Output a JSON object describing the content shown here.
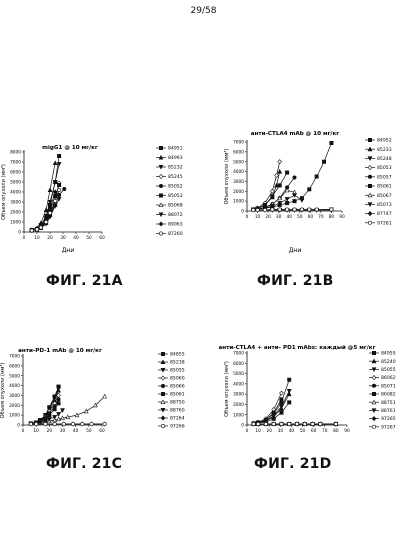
{
  "page_number": "29/58",
  "panels": [
    {
      "id": "A",
      "title": "migG1 @ 10 мг/кг",
      "ylabel": "Объем опухоли (мм³)",
      "xlabel": "Дни",
      "figure_label": "ФИГ. 21A",
      "ylim": [
        0,
        8000
      ],
      "xlim": [
        0,
        60
      ],
      "yticks": [
        "0",
        "1000",
        "2000",
        "3000",
        "4000",
        "5000",
        "6000",
        "7000",
        "8000"
      ],
      "xticks": [
        "0",
        "10",
        "20",
        "30",
        "40",
        "50",
        "60"
      ],
      "legend": [
        "84951",
        "84993",
        "85232",
        "85245",
        "85052",
        "85053",
        "85068",
        "88072",
        "89063",
        "87260"
      ]
    },
    {
      "id": "B",
      "title": "анти-CTLA4 mAb @ 10 мг/кг",
      "ylabel": "Объем опухоли (мм³)",
      "xlabel": "Дни",
      "figure_label": "ФИГ. 21B",
      "ylim": [
        0,
        7000
      ],
      "xlim": [
        0,
        90
      ],
      "yticks": [
        "0",
        "1000",
        "2000",
        "3000",
        "4000",
        "5000",
        "6000",
        "7000"
      ],
      "xticks": [
        "0",
        "10",
        "20",
        "30",
        "40",
        "50",
        "60",
        "70",
        "80",
        "90"
      ],
      "legend": [
        "84952",
        "85233",
        "85248",
        "85053",
        "85057",
        "85061",
        "85067",
        "85073",
        "87747",
        "97261"
      ]
    },
    {
      "id": "C",
      "title": "анти-PD-1 mAb @ 10 мг/кг",
      "ylabel": "Объем опухоли (мм³)",
      "xlabel": "",
      "figure_label": "ФИГ. 21C",
      "ylim": [
        0,
        7000
      ],
      "xlim": [
        0,
        60
      ],
      "yticks": [
        "0",
        "1000",
        "2000",
        "3000",
        "4000",
        "5000",
        "6000",
        "7000"
      ],
      "xticks": [
        "0",
        "10",
        "20",
        "30",
        "40",
        "50",
        "60"
      ],
      "legend": [
        "84855",
        "85238",
        "85055",
        "85060",
        "85066",
        "85061",
        "88750",
        "88760",
        "87264",
        "97266"
      ]
    },
    {
      "id": "D",
      "title": "анти-CTLA4 + анти- PD1 mAbs: каждый @5 мг/кг",
      "ylabel": "Объем опухоли (мм³)",
      "xlabel": "",
      "figure_label": "ФИГ. 21D",
      "ylim": [
        0,
        7000
      ],
      "xlim": [
        0,
        90
      ],
      "yticks": [
        "0",
        "1000",
        "2000",
        "3000",
        "4000",
        "5000",
        "6000",
        "7000"
      ],
      "xticks": [
        "0",
        "10",
        "20",
        "30",
        "40",
        "50",
        "60",
        "70",
        "80",
        "90"
      ],
      "legend": [
        "84955",
        "85240",
        "85055",
        "86062",
        "85071",
        "86082",
        "88751",
        "88761",
        "97265",
        "97267"
      ]
    }
  ],
  "chart_data": [
    {
      "type": "line",
      "title": "migG1 @ 10 мг/кг",
      "xlabel": "Дни",
      "ylabel": "Объем опухоли (мм³)",
      "xlim": [
        0,
        60
      ],
      "ylim": [
        0,
        8000
      ],
      "grid": false,
      "legend_position": "right",
      "series": [
        {
          "name": "84951",
          "x": [
            6,
            10,
            13,
            17,
            20,
            24,
            27
          ],
          "y": [
            200,
            300,
            600,
            1400,
            2700,
            5000,
            7600
          ]
        },
        {
          "name": "84993",
          "x": [
            6,
            10,
            13,
            17,
            20,
            24
          ],
          "y": [
            200,
            400,
            900,
            2200,
            4200,
            6900
          ]
        },
        {
          "name": "85232",
          "x": [
            6,
            10,
            13,
            17,
            20,
            24,
            27
          ],
          "y": [
            150,
            300,
            700,
            1600,
            3000,
            5000,
            6800
          ]
        },
        {
          "name": "85245",
          "x": [
            6,
            10,
            13,
            17,
            20,
            24,
            27
          ],
          "y": [
            150,
            250,
            500,
            1000,
            1800,
            3100,
            4900
          ]
        },
        {
          "name": "85052",
          "x": [
            6,
            10,
            13,
            17,
            20,
            24,
            27,
            31
          ],
          "y": [
            150,
            250,
            450,
            900,
            1700,
            2800,
            3700,
            4300
          ]
        },
        {
          "name": "85053",
          "x": [
            6,
            10,
            13,
            17,
            20,
            24,
            27
          ],
          "y": [
            150,
            250,
            500,
            1100,
            2100,
            3600,
            4700
          ]
        },
        {
          "name": "85068",
          "x": [
            6,
            10,
            13,
            17,
            20,
            24
          ],
          "y": [
            150,
            250,
            400,
            900,
            1700,
            2700
          ]
        },
        {
          "name": "88072",
          "x": [
            6,
            10,
            13,
            17,
            20,
            24,
            27
          ],
          "y": [
            150,
            200,
            400,
            800,
            1500,
            2600,
            3300
          ]
        },
        {
          "name": "89063",
          "x": [
            6,
            10,
            13,
            17,
            20,
            24
          ],
          "y": [
            150,
            250,
            550,
            1200,
            2400,
            4000
          ]
        },
        {
          "name": "87260",
          "x": [
            6,
            10,
            13,
            17,
            20,
            24,
            27
          ],
          "y": [
            150,
            250,
            450,
            1000,
            1900,
            3100,
            4200
          ]
        }
      ]
    },
    {
      "type": "line",
      "title": "анти-CTLA4 mAb @ 10 мг/кг",
      "xlabel": "Дни",
      "ylabel": "Объем опухоли (мм³)",
      "xlim": [
        0,
        90
      ],
      "ylim": [
        0,
        7000
      ],
      "grid": false,
      "legend_position": "right",
      "series": [
        {
          "name": "84952",
          "x": [
            6,
            10,
            17,
            24,
            31,
            38,
            45,
            52,
            59,
            66,
            73,
            80
          ],
          "y": [
            150,
            200,
            300,
            400,
            600,
            800,
            1000,
            1300,
            2200,
            3500,
            5000,
            6900
          ]
        },
        {
          "name": "85233",
          "x": [
            6,
            10,
            17,
            24,
            28,
            31
          ],
          "y": [
            150,
            250,
            600,
            1400,
            2600,
            4000
          ]
        },
        {
          "name": "85248",
          "x": [
            6,
            10,
            17,
            24,
            31,
            38,
            45,
            52,
            59,
            66,
            80
          ],
          "y": [
            100,
            100,
            100,
            100,
            100,
            100,
            100,
            100,
            100,
            100,
            150
          ]
        },
        {
          "name": "85053",
          "x": [
            6,
            10,
            17,
            24,
            28,
            31
          ],
          "y": [
            150,
            300,
            800,
            2000,
            3600,
            5000
          ]
        },
        {
          "name": "85057",
          "x": [
            6,
            10,
            17,
            24,
            31,
            38,
            45
          ],
          "y": [
            150,
            200,
            350,
            700,
            1300,
            2400,
            3400
          ]
        },
        {
          "name": "85061",
          "x": [
            6,
            10,
            17,
            24,
            31,
            38
          ],
          "y": [
            150,
            250,
            600,
            1500,
            2600,
            3900
          ]
        },
        {
          "name": "85067",
          "x": [
            6,
            10,
            17,
            24,
            31,
            38,
            45
          ],
          "y": [
            150,
            200,
            350,
            700,
            1300,
            2100,
            1900
          ]
        },
        {
          "name": "85073",
          "x": [
            6,
            10,
            17,
            24,
            31,
            38,
            45,
            52
          ],
          "y": [
            150,
            200,
            300,
            500,
            800,
            1200,
            1600,
            1100
          ]
        },
        {
          "name": "87747",
          "x": [
            6,
            10,
            17,
            24,
            31,
            38,
            45,
            52,
            59,
            66,
            80
          ],
          "y": [
            100,
            100,
            100,
            100,
            100,
            100,
            100,
            100,
            100,
            100,
            100
          ]
        },
        {
          "name": "97261",
          "x": [
            6,
            10,
            17,
            24,
            31,
            38,
            45,
            52,
            59,
            66,
            80
          ],
          "y": [
            100,
            100,
            100,
            150,
            150,
            150,
            150,
            150,
            150,
            150,
            150
          ]
        }
      ]
    },
    {
      "type": "line",
      "title": "анти-PD-1 mAb @ 10 мг/кг",
      "xlabel": "",
      "ylabel": "Объем опухоли (мм³)",
      "xlim": [
        0,
        60
      ],
      "ylim": [
        0,
        7000
      ],
      "grid": false,
      "legend_position": "right",
      "series": [
        {
          "name": "84855",
          "x": [
            6,
            10,
            13,
            17,
            20,
            24,
            27
          ],
          "y": [
            150,
            250,
            500,
            1000,
            1800,
            2900,
            3900
          ]
        },
        {
          "name": "85238",
          "x": [
            6,
            10,
            13,
            17,
            20,
            24,
            27
          ],
          "y": [
            150,
            200,
            450,
            900,
            1600,
            2500,
            3500
          ]
        },
        {
          "name": "85055",
          "x": [
            6,
            10,
            13,
            17,
            20,
            24,
            27
          ],
          "y": [
            150,
            250,
            500,
            1000,
            1700,
            2700,
            3700
          ]
        },
        {
          "name": "85060",
          "x": [
            6,
            10,
            13,
            17,
            20,
            24,
            27
          ],
          "y": [
            150,
            200,
            400,
            800,
            1400,
            2200,
            3000
          ]
        },
        {
          "name": "85066",
          "x": [
            6,
            10,
            13,
            17,
            20,
            24,
            27
          ],
          "y": [
            150,
            200,
            400,
            700,
            1200,
            1900,
            2600
          ]
        },
        {
          "name": "85061",
          "x": [
            6,
            10,
            13,
            17,
            20,
            24,
            27
          ],
          "y": [
            150,
            200,
            350,
            600,
            1000,
            1600,
            2200
          ]
        },
        {
          "name": "88750",
          "x": [
            6,
            10,
            13,
            17,
            20,
            24,
            27,
            30,
            34,
            41,
            48,
            55,
            62
          ],
          "y": [
            150,
            200,
            250,
            300,
            400,
            500,
            600,
            700,
            800,
            1000,
            1400,
            2000,
            2900
          ]
        },
        {
          "name": "88760",
          "x": [
            6,
            10,
            13,
            17,
            20,
            24,
            27,
            30
          ],
          "y": [
            150,
            200,
            300,
            400,
            600,
            800,
            1100,
            1500
          ]
        },
        {
          "name": "87264",
          "x": [
            6,
            10,
            17,
            24,
            31,
            38,
            45,
            52,
            62
          ],
          "y": [
            100,
            100,
            100,
            100,
            100,
            100,
            100,
            100,
            100
          ]
        },
        {
          "name": "97266",
          "x": [
            6,
            10,
            17,
            24,
            31,
            38,
            45,
            52,
            62
          ],
          "y": [
            100,
            100,
            100,
            100,
            100,
            100,
            100,
            100,
            100
          ]
        }
      ]
    },
    {
      "type": "line",
      "title": "анти-CTLA4 + анти- PD1 mAbs: каждый @5 мг/кг",
      "xlabel": "",
      "ylabel": "Объем опухоли (мм³)",
      "xlim": [
        0,
        90
      ],
      "ylim": [
        0,
        7000
      ],
      "grid": false,
      "legend_position": "right",
      "series": [
        {
          "name": "84955",
          "x": [
            6,
            10,
            17,
            24,
            31,
            38
          ],
          "y": [
            150,
            250,
            500,
            1100,
            2200,
            4400
          ]
        },
        {
          "name": "85240",
          "x": [
            6,
            10,
            17,
            24,
            31,
            38
          ],
          "y": [
            150,
            200,
            400,
            800,
            1600,
            3000
          ]
        },
        {
          "name": "85055",
          "x": [
            6,
            10,
            17,
            24,
            31,
            38
          ],
          "y": [
            150,
            200,
            400,
            900,
            1800,
            3300
          ]
        },
        {
          "name": "86062",
          "x": [
            6,
            10,
            17,
            24,
            31
          ],
          "y": [
            150,
            250,
            600,
            1500,
            3100
          ]
        },
        {
          "name": "85071",
          "x": [
            6,
            10,
            17,
            24,
            31
          ],
          "y": [
            150,
            250,
            500,
            1200,
            2500
          ]
        },
        {
          "name": "86082",
          "x": [
            6,
            10,
            17,
            24,
            31,
            38
          ],
          "y": [
            150,
            200,
            300,
            600,
            1200,
            2200
          ]
        },
        {
          "name": "88751",
          "x": [
            6,
            10,
            17,
            24,
            31,
            38,
            45,
            52,
            59,
            66,
            80
          ],
          "y": [
            100,
            100,
            100,
            100,
            100,
            100,
            100,
            100,
            100,
            100,
            100
          ]
        },
        {
          "name": "88761",
          "x": [
            6,
            10,
            17,
            24,
            31,
            38,
            45,
            52,
            59,
            66,
            80
          ],
          "y": [
            100,
            100,
            100,
            100,
            100,
            100,
            100,
            100,
            100,
            100,
            100
          ]
        },
        {
          "name": "97265",
          "x": [
            6,
            10,
            17,
            24,
            31,
            38,
            45,
            52,
            59,
            66,
            80
          ],
          "y": [
            100,
            100,
            100,
            100,
            100,
            100,
            100,
            100,
            100,
            100,
            100
          ]
        },
        {
          "name": "97267",
          "x": [
            6,
            10,
            17,
            24,
            31,
            38,
            45,
            52,
            59,
            66,
            80
          ],
          "y": [
            100,
            100,
            100,
            100,
            100,
            100,
            100,
            100,
            100,
            100,
            100
          ]
        }
      ]
    }
  ]
}
